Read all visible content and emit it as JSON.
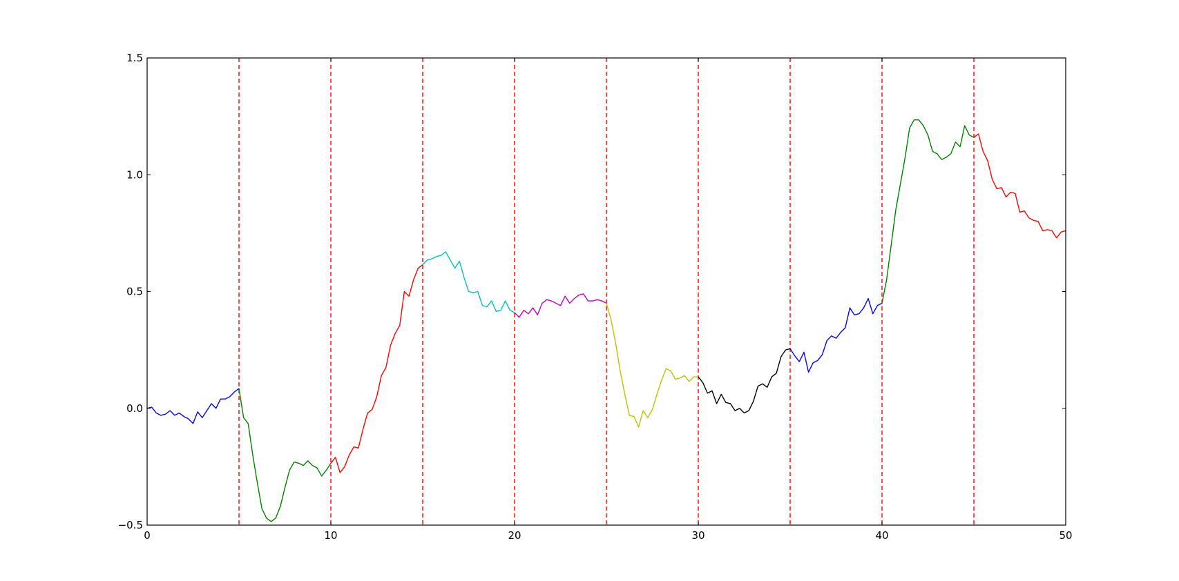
{
  "chart_data": {
    "type": "line",
    "title": "",
    "xlabel": "",
    "ylabel": "",
    "xlim": [
      0,
      50
    ],
    "ylim": [
      -0.5,
      1.5
    ],
    "x_ticks": [
      0,
      10,
      20,
      30,
      40,
      50
    ],
    "y_ticks": [
      -0.5,
      0.0,
      0.5,
      1.0,
      1.5
    ],
    "x_tick_labels": [
      "0",
      "10",
      "20",
      "30",
      "40",
      "50"
    ],
    "y_tick_labels": [
      "−0.5",
      "0.0",
      "0.5",
      "1.0",
      "1.5"
    ],
    "grid": false,
    "legend": "none",
    "vlines": {
      "color": "#ff0000",
      "style": "dashed",
      "x": [
        5,
        10,
        15,
        20,
        25,
        30,
        35,
        40,
        45
      ]
    },
    "series": [
      {
        "color": "#0000ff",
        "x": [
          0,
          0.25,
          0.5,
          0.75,
          1,
          1.25,
          1.5,
          1.75,
          2,
          2.25,
          2.5,
          2.75,
          3,
          3.25,
          3.5,
          3.75,
          4,
          4.25,
          4.5,
          4.75,
          5
        ],
        "y": [
          0.0,
          0.005,
          -0.02,
          -0.03,
          -0.025,
          -0.01,
          -0.03,
          -0.02,
          -0.035,
          -0.045,
          -0.065,
          -0.015,
          -0.04,
          -0.01,
          0.02,
          0.0,
          0.04,
          0.04,
          0.05,
          0.07,
          0.085
        ]
      },
      {
        "color": "#008000",
        "x": [
          5,
          5.25,
          5.5,
          5.75,
          6,
          6.25,
          6.5,
          6.75,
          7,
          7.25,
          7.5,
          7.75,
          8,
          8.25,
          8.5,
          8.75,
          9,
          9.25,
          9.5,
          9.75,
          10
        ],
        "y": [
          0.085,
          -0.04,
          -0.065,
          -0.2,
          -0.32,
          -0.43,
          -0.47,
          -0.485,
          -0.47,
          -0.42,
          -0.34,
          -0.265,
          -0.23,
          -0.235,
          -0.245,
          -0.225,
          -0.245,
          -0.255,
          -0.29,
          -0.265,
          -0.235
        ]
      },
      {
        "color": "#ff0000",
        "x": [
          10,
          10.25,
          10.5,
          10.75,
          11,
          11.25,
          11.5,
          11.75,
          12,
          12.25,
          12.5,
          12.75,
          13,
          13.25,
          13.5,
          13.75,
          14,
          14.25,
          14.5,
          14.75,
          15
        ],
        "y": [
          -0.235,
          -0.21,
          -0.275,
          -0.25,
          -0.2,
          -0.165,
          -0.17,
          -0.09,
          -0.02,
          -0.005,
          0.05,
          0.14,
          0.175,
          0.27,
          0.32,
          0.355,
          0.5,
          0.48,
          0.55,
          0.6,
          0.615
        ]
      },
      {
        "color": "#00bfbf",
        "x": [
          15,
          15.25,
          15.5,
          15.75,
          16,
          16.25,
          16.5,
          16.75,
          17,
          17.25,
          17.5,
          17.75,
          18,
          18.25,
          18.5,
          18.75,
          19,
          19.25,
          19.5,
          19.75,
          20
        ],
        "y": [
          0.615,
          0.635,
          0.64,
          0.65,
          0.655,
          0.67,
          0.635,
          0.6,
          0.63,
          0.56,
          0.5,
          0.495,
          0.5,
          0.44,
          0.435,
          0.46,
          0.415,
          0.42,
          0.46,
          0.42,
          0.41
        ]
      },
      {
        "color": "#bf00bf",
        "x": [
          20,
          20.25,
          20.5,
          20.75,
          21,
          21.25,
          21.5,
          21.75,
          22,
          22.25,
          22.5,
          22.75,
          23,
          23.25,
          23.5,
          23.75,
          24,
          24.25,
          24.5,
          24.75,
          25
        ],
        "y": [
          0.41,
          0.39,
          0.42,
          0.405,
          0.43,
          0.4,
          0.45,
          0.465,
          0.46,
          0.45,
          0.44,
          0.48,
          0.45,
          0.47,
          0.485,
          0.49,
          0.46,
          0.46,
          0.465,
          0.46,
          0.45
        ]
      },
      {
        "color": "#bfbf00",
        "x": [
          25,
          25.25,
          25.5,
          25.75,
          26,
          26.25,
          26.5,
          26.75,
          27,
          27.25,
          27.5,
          27.75,
          28,
          28.25,
          28.5,
          28.75,
          29,
          29.25,
          29.5,
          29.75,
          30
        ],
        "y": [
          0.45,
          0.38,
          0.28,
          0.16,
          0.06,
          -0.03,
          -0.035,
          -0.08,
          -0.01,
          -0.04,
          -0.005,
          0.06,
          0.12,
          0.17,
          0.16,
          0.125,
          0.13,
          0.14,
          0.115,
          0.135,
          0.135
        ]
      },
      {
        "color": "#000000",
        "x": [
          30,
          30.25,
          30.5,
          30.75,
          31,
          31.25,
          31.5,
          31.75,
          32,
          32.25,
          32.5,
          32.75,
          33,
          33.25,
          33.5,
          33.75,
          34,
          34.25,
          34.5,
          34.75,
          35
        ],
        "y": [
          0.135,
          0.11,
          0.065,
          0.075,
          0.02,
          0.06,
          0.025,
          0.02,
          -0.01,
          0.0,
          -0.02,
          -0.01,
          0.03,
          0.095,
          0.105,
          0.09,
          0.135,
          0.15,
          0.22,
          0.25,
          0.255
        ]
      },
      {
        "color": "#0000ff",
        "x": [
          35,
          35.25,
          35.5,
          35.75,
          36,
          36.25,
          36.5,
          36.75,
          37,
          37.25,
          37.5,
          37.75,
          38,
          38.25,
          38.5,
          38.75,
          39,
          39.25,
          39.5,
          39.75,
          40
        ],
        "y": [
          0.255,
          0.225,
          0.2,
          0.24,
          0.155,
          0.195,
          0.205,
          0.23,
          0.29,
          0.31,
          0.3,
          0.325,
          0.345,
          0.43,
          0.4,
          0.405,
          0.43,
          0.47,
          0.405,
          0.44,
          0.45
        ]
      },
      {
        "color": "#008000",
        "x": [
          40,
          40.25,
          40.5,
          40.75,
          41,
          41.25,
          41.5,
          41.75,
          42,
          42.25,
          42.5,
          42.75,
          43,
          43.25,
          43.5,
          43.75,
          44,
          44.25,
          44.5,
          44.75,
          45
        ],
        "y": [
          0.45,
          0.55,
          0.7,
          0.85,
          0.96,
          1.07,
          1.2,
          1.235,
          1.235,
          1.21,
          1.17,
          1.1,
          1.09,
          1.065,
          1.075,
          1.09,
          1.14,
          1.12,
          1.21,
          1.17,
          1.16
        ]
      },
      {
        "color": "#ff0000",
        "x": [
          45,
          45.25,
          45.5,
          45.75,
          46,
          46.25,
          46.5,
          46.75,
          47,
          47.25,
          47.5,
          47.75,
          48,
          48.25,
          48.5,
          48.75,
          49,
          49.25,
          49.5,
          49.75,
          50
        ],
        "y": [
          1.16,
          1.175,
          1.1,
          1.06,
          0.98,
          0.94,
          0.945,
          0.905,
          0.925,
          0.92,
          0.84,
          0.845,
          0.815,
          0.805,
          0.8,
          0.76,
          0.765,
          0.76,
          0.73,
          0.755,
          0.76
        ]
      }
    ]
  }
}
